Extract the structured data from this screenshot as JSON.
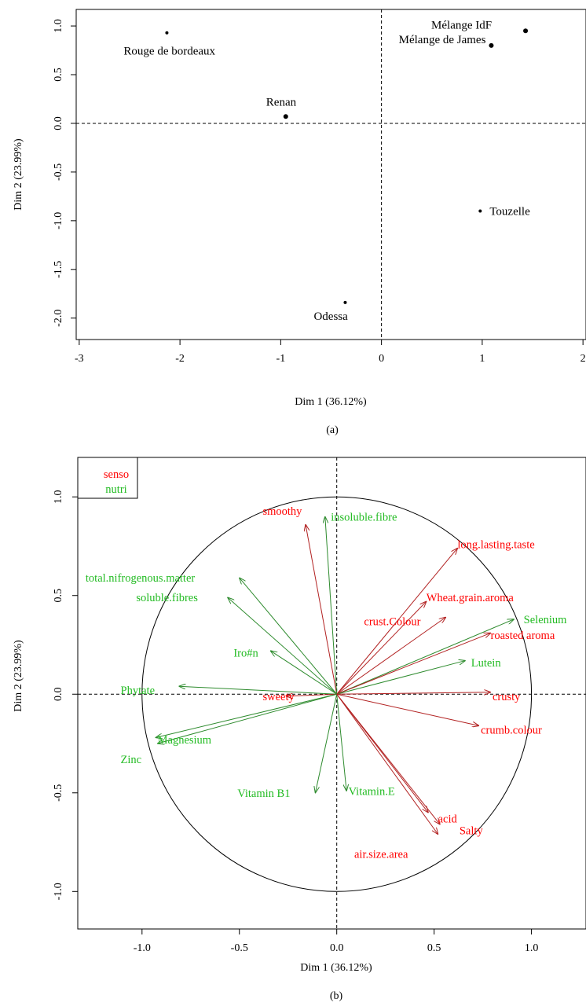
{
  "chart_data": [
    {
      "type": "scatter",
      "caption": "(a)",
      "xlabel": "Dim 1 (36.12%)",
      "ylabel": "Dim 2 (23.99%)",
      "xlim": [
        -3.03,
        2.03
      ],
      "ylim": [
        -2.22,
        1.17
      ],
      "x_ticks": [
        -3,
        -2,
        -1,
        0,
        1,
        2
      ],
      "y_ticks": [
        -2.0,
        -1.5,
        -1.0,
        -0.5,
        0.0,
        0.5,
        1.0
      ],
      "x_tick_labels": [
        "-3",
        "-2",
        "-1",
        "0",
        "1",
        "2"
      ],
      "y_tick_labels": [
        "-2.0",
        "-1.5",
        "-1.0",
        "-0.5",
        "0.0",
        "0.5",
        "1.0"
      ],
      "points": [
        {
          "label": "Rouge de bordeaux",
          "x": -2.13,
          "y": 0.93
        },
        {
          "label": "Mélange IdF",
          "x": 1.43,
          "y": 0.95
        },
        {
          "label": "Mélange de James",
          "x": 1.09,
          "y": 0.8
        },
        {
          "label": "Renan",
          "x": -0.95,
          "y": 0.07
        },
        {
          "label": "Touzelle",
          "x": 0.98,
          "y": -0.9
        },
        {
          "label": "Odessa",
          "x": -0.36,
          "y": -1.84
        }
      ]
    },
    {
      "type": "scatter",
      "caption": "(b)",
      "xlabel": "Dim 1 (36.12%)",
      "ylabel": "Dim 2 (23.99%)",
      "xlim": [
        -1.33,
        1.28
      ],
      "ylim": [
        -1.19,
        1.2
      ],
      "x_ticks": [
        -1.0,
        -0.5,
        0.0,
        0.5,
        1.0
      ],
      "y_ticks": [
        -1.0,
        -0.5,
        0.0,
        0.5,
        1.0
      ],
      "x_tick_labels": [
        "-1.0",
        "-0.5",
        "0.0",
        "0.5",
        "1.0"
      ],
      "y_tick_labels": [
        "-1.0",
        "-0.5",
        "0.0",
        "0.5",
        "1.0"
      ],
      "legend": {
        "position": "top-left",
        "entries": [
          {
            "name": "senso",
            "color": "#ff0000"
          },
          {
            "name": "nutri",
            "color": "#22bb22"
          }
        ]
      },
      "groups": {
        "senso": {
          "color": "#ff0000",
          "arrow_color": "#b22222"
        },
        "nutri": {
          "color": "#22bb22",
          "arrow_color": "#2e8b2e"
        }
      },
      "variables": [
        {
          "label": "smoothy",
          "group": "senso",
          "x": -0.16,
          "y": 0.86
        },
        {
          "label": "insoluble.fibre",
          "group": "nutri",
          "x": -0.06,
          "y": 0.9
        },
        {
          "label": "long.lasting.taste",
          "group": "senso",
          "x": 0.62,
          "y": 0.74
        },
        {
          "label": "total.nifrogenous.matter",
          "group": "nutri",
          "x": -0.5,
          "y": 0.59
        },
        {
          "label": "soluble.fibres",
          "group": "nutri",
          "x": -0.56,
          "y": 0.49
        },
        {
          "label": "Wheat.grain.aroma",
          "group": "senso",
          "x": 0.46,
          "y": 0.47
        },
        {
          "label": "crust.Colour",
          "group": "senso",
          "x": 0.56,
          "y": 0.39
        },
        {
          "label": "Selenium",
          "group": "nutri",
          "x": 0.91,
          "y": 0.38
        },
        {
          "label": "roasted aroma",
          "group": "senso",
          "x": 0.79,
          "y": 0.31
        },
        {
          "label": "Iro#n",
          "group": "nutri",
          "x": -0.34,
          "y": 0.22
        },
        {
          "label": "Lutein",
          "group": "nutri",
          "x": 0.66,
          "y": 0.17
        },
        {
          "label": "Phytate",
          "group": "nutri",
          "x": -0.81,
          "y": 0.04
        },
        {
          "label": "sweety",
          "group": "senso",
          "x": -0.26,
          "y": -0.01
        },
        {
          "label": "crusty",
          "group": "senso",
          "x": 0.79,
          "y": 0.01
        },
        {
          "label": "crumb.colour",
          "group": "senso",
          "x": 0.73,
          "y": -0.16
        },
        {
          "label": "Magnesium",
          "group": "nutri",
          "x": -0.93,
          "y": -0.22
        },
        {
          "label": "Zinc",
          "group": "nutri",
          "x": -0.92,
          "y": -0.25
        },
        {
          "label": "Vitamin B1",
          "group": "nutri",
          "x": -0.11,
          "y": -0.5
        },
        {
          "label": "Vitamin.E",
          "group": "nutri",
          "x": 0.05,
          "y": -0.49
        },
        {
          "label": "acid",
          "group": "senso",
          "x": 0.47,
          "y": -0.6
        },
        {
          "label": "Salty",
          "group": "senso",
          "x": 0.53,
          "y": -0.66
        },
        {
          "label": "air.size.area",
          "group": "senso",
          "x": 0.52,
          "y": -0.71
        }
      ],
      "circle": {
        "radius": 1
      }
    }
  ]
}
